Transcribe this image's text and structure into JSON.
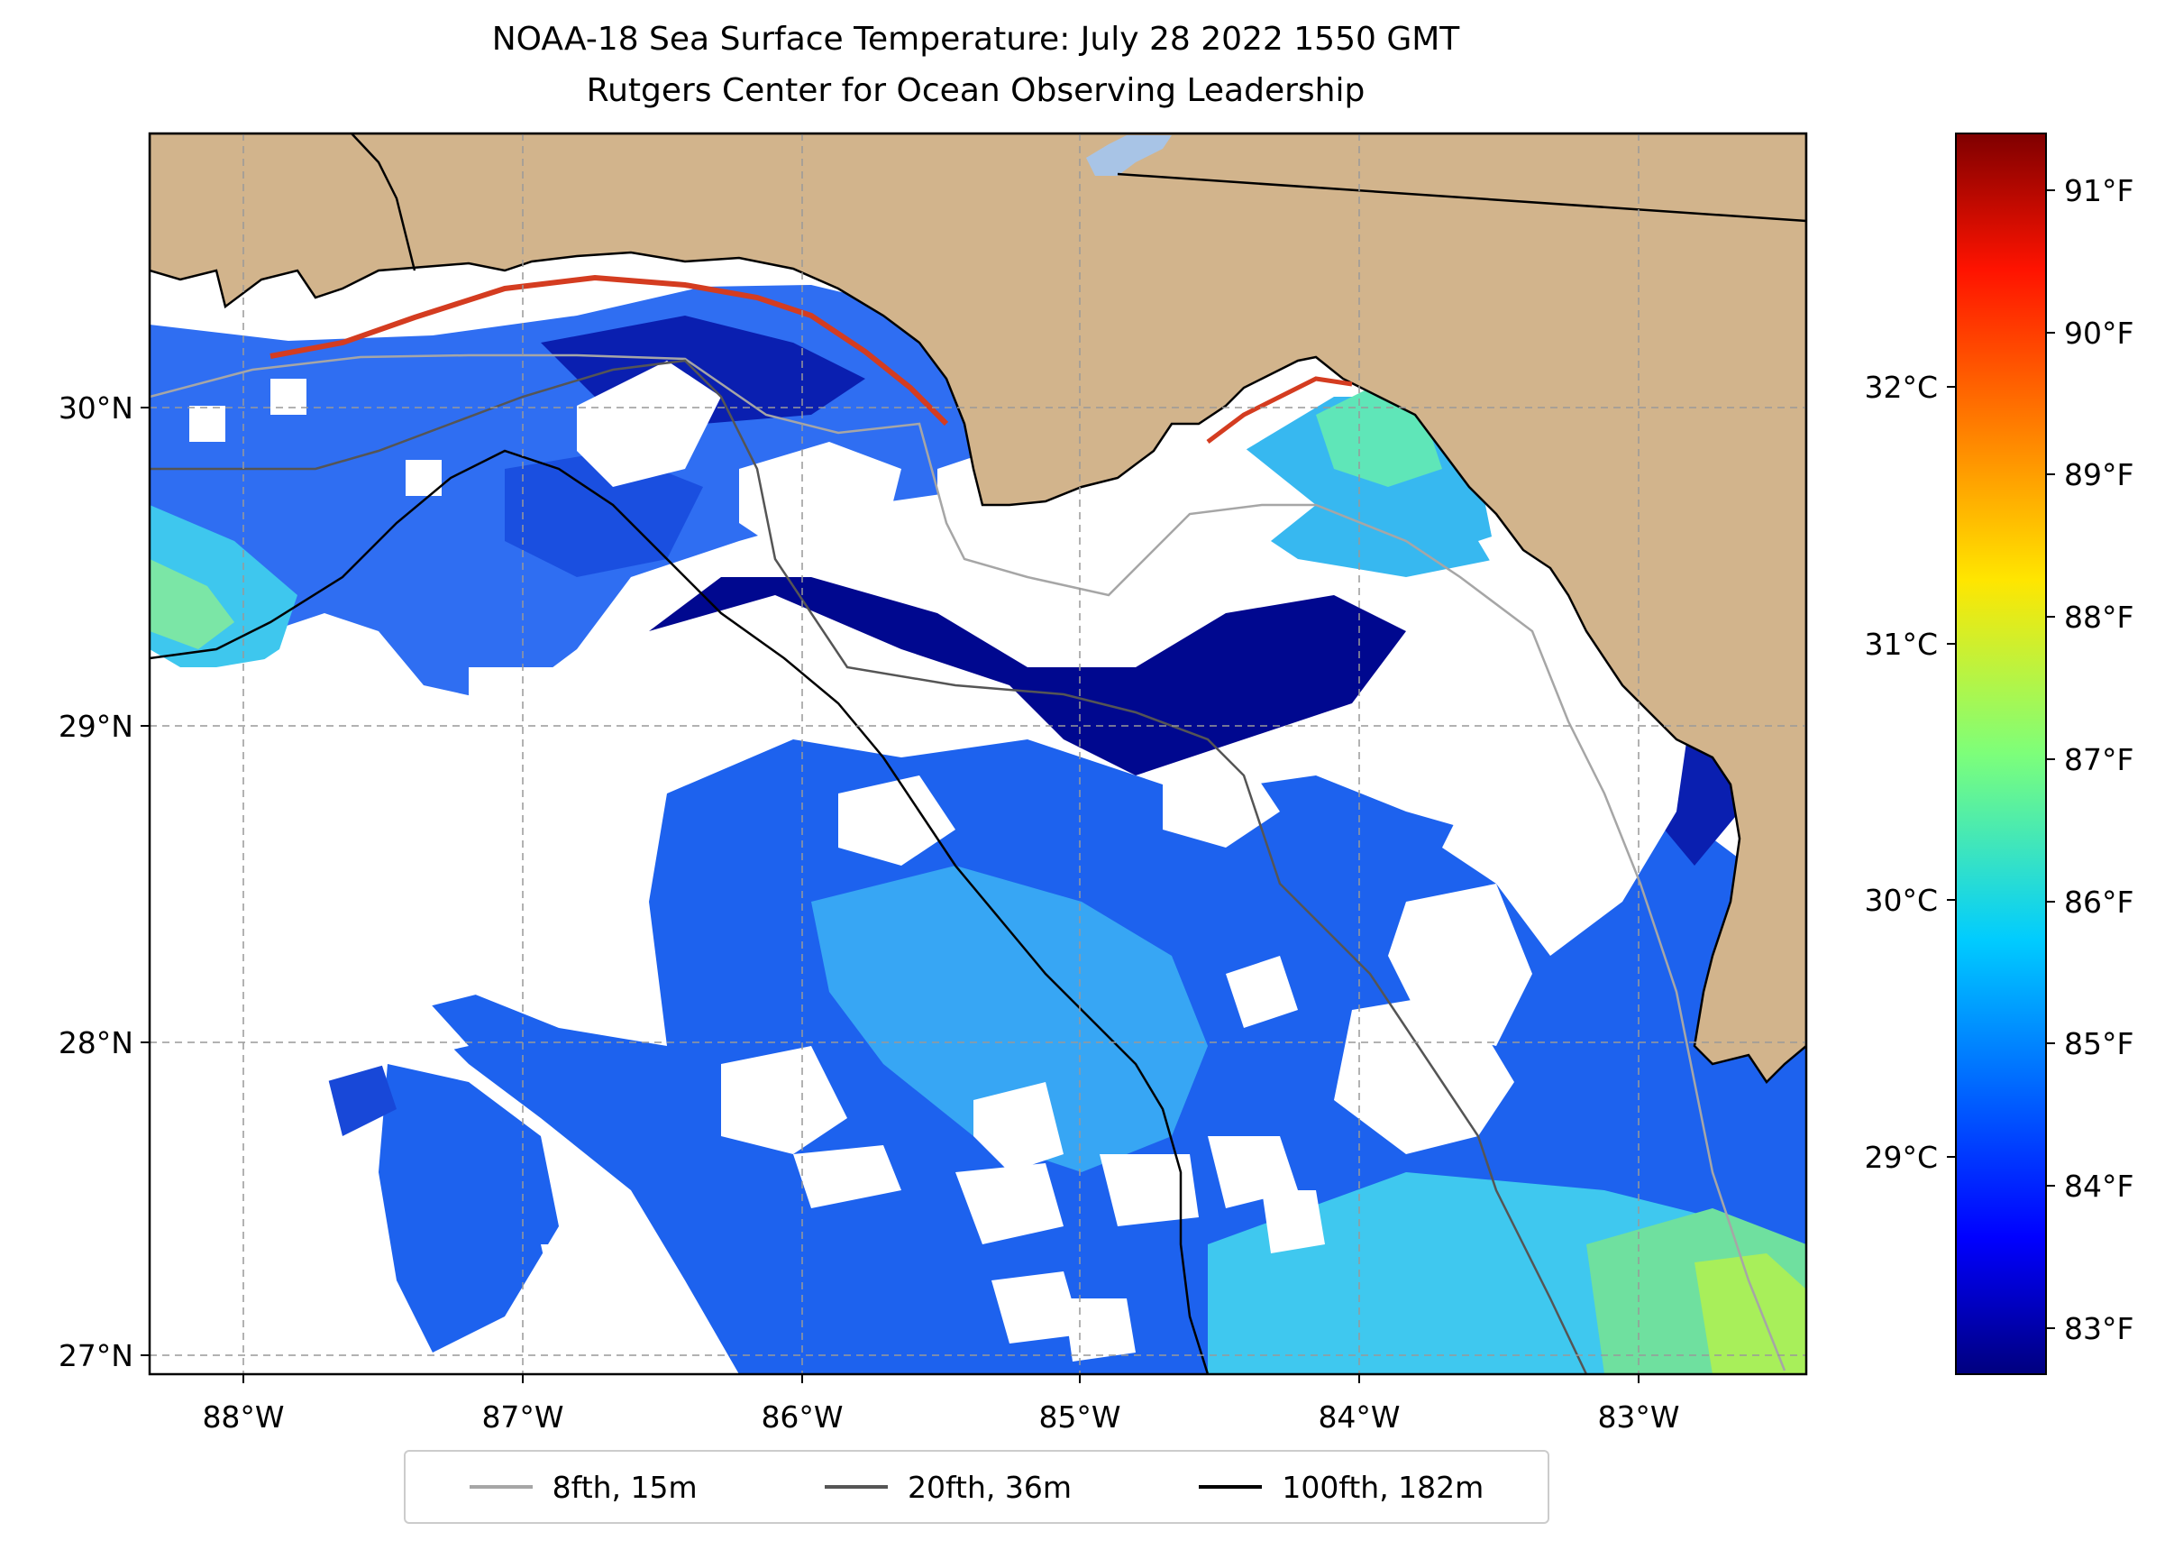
{
  "title": {
    "line1": "NOAA-18 Sea Surface Temperature: July 28 2022 1550 GMT",
    "line2": "Rutgers Center for Ocean Observing Leadership"
  },
  "axes": {
    "lon_ticks": [
      "88°W",
      "87°W",
      "86°W",
      "85°W",
      "84°W",
      "83°W"
    ],
    "lat_ticks": [
      "30°N",
      "29°N",
      "28°N",
      "27°N"
    ]
  },
  "colorbar": {
    "fahrenheit_ticks": [
      "91°F",
      "90°F",
      "89°F",
      "88°F",
      "87°F",
      "86°F",
      "85°F",
      "84°F",
      "83°F"
    ],
    "celsius_ticks": [
      "32°C",
      "31°C",
      "30°C",
      "29°C"
    ]
  },
  "legend": {
    "items": [
      {
        "label": "8fth, 15m",
        "color": "#a6a6a6"
      },
      {
        "label": "20fth, 36m",
        "color": "#555555"
      },
      {
        "label": "100fth, 182m",
        "color": "#000000"
      }
    ]
  },
  "colors": {
    "land": "#d2b48c",
    "cloud": "#ffffff",
    "lake": "#a8c4e6"
  }
}
